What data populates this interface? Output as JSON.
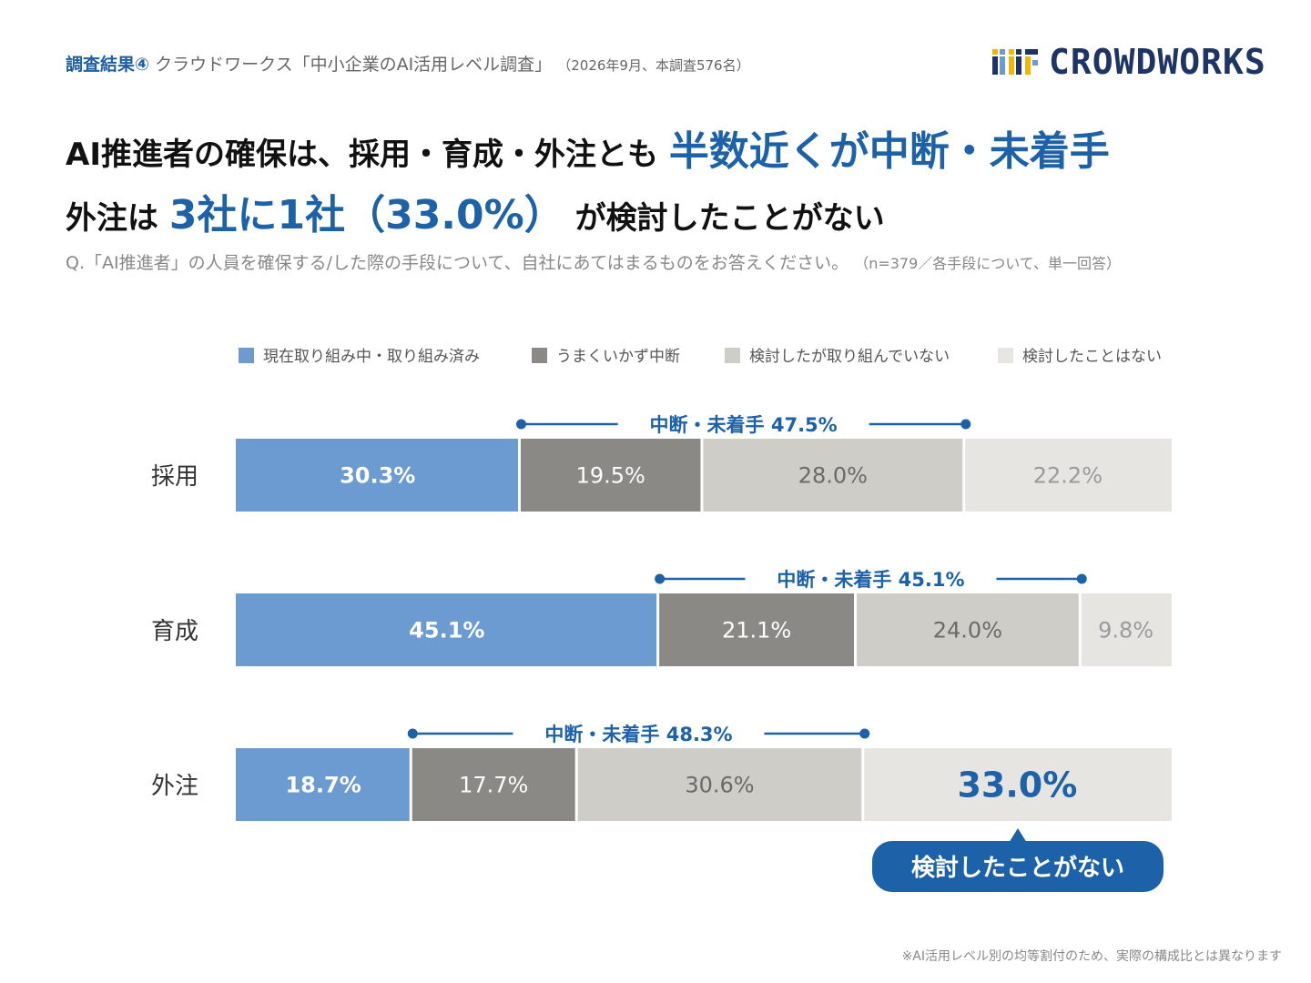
{
  "header": {
    "tag": "調査結果④",
    "survey_title": "クラウドワークス「中小企業のAI活用レベル調査」",
    "period": "（2026年9月、本調査576名）"
  },
  "logo": {
    "text": "CROWDWORKS",
    "icon": "crowdworks-logo-icon"
  },
  "headline": {
    "line1_prefix": "AI推進者の確保は、採用・育成・外注とも",
    "line1_highlight": "半数近くが中断・未着手",
    "line2_prefix": "外注は",
    "line2_highlight": "3社に1社（33.0%）",
    "line2_suffix": "が検討したことがない"
  },
  "question": {
    "text": "Q.「AI推進者」の人員を確保する/した際の手段について、自社にあてはまるものをお答えください。",
    "meta": "（n=379／各手段について、単一回答）"
  },
  "footnote": "※AI活用レベル別の均等割付のため、実際の構成比とは異なります",
  "colors": {
    "current": "#6b9bd0",
    "interrupted": "#8a8986",
    "considered": "#cfcdc8",
    "never": "#e6e5e1",
    "accent": "#1d62a8"
  },
  "chart_data": {
    "type": "bar",
    "stacked": true,
    "orientation": "horizontal",
    "categories": [
      "採用",
      "育成",
      "外注"
    ],
    "series": [
      {
        "name": "現在取り組み中・取り組み済み",
        "values": [
          30.3,
          45.1,
          18.7
        ]
      },
      {
        "name": "うまくいかず中断",
        "values": [
          19.5,
          21.1,
          17.7
        ]
      },
      {
        "name": "検討したが取り組んでいない",
        "values": [
          28.0,
          24.0,
          30.6
        ]
      },
      {
        "name": "検討したことはない",
        "values": [
          22.2,
          9.8,
          33.0
        ]
      }
    ],
    "value_labels": [
      [
        "30.3%",
        "19.5%",
        "28.0%",
        "22.2%"
      ],
      [
        "45.1%",
        "21.1%",
        "24.0%",
        "9.8%"
      ],
      [
        "18.7%",
        "17.7%",
        "30.6%",
        "33.0%"
      ]
    ],
    "annotations": [
      "中断・未着手 47.5%",
      "中断・未着手 45.1%",
      "中断・未着手 48.3%"
    ],
    "callout": "検討したことがない",
    "xlim": [
      0,
      100
    ],
    "legend": "top",
    "grid": false
  }
}
